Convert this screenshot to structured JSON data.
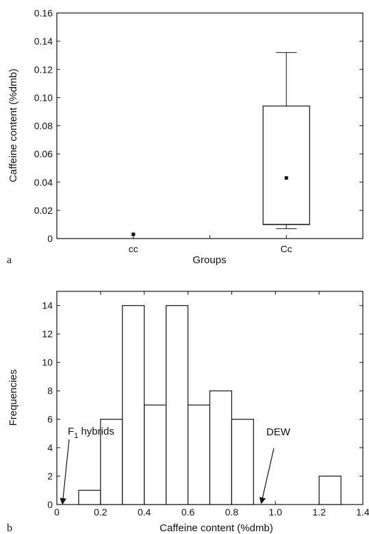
{
  "chart_data": [
    {
      "panel_label": "a",
      "type": "boxplot",
      "xlabel": "Groups",
      "ylabel": "Caffeine content (%dmb)",
      "ylim": [
        0,
        0.16
      ],
      "yticks": [
        "0",
        "0.02",
        "0.04",
        "0.06",
        "0.08",
        "0.10",
        "0.12",
        "0.14",
        "0.16"
      ],
      "categories": [
        "cc",
        "Cc"
      ],
      "boxes": [
        {
          "name": "cc",
          "min": 0.003,
          "q1": 0.003,
          "median": 0.003,
          "q3": 0.003,
          "max": 0.003,
          "mean": 0.003
        },
        {
          "name": "Cc",
          "min": 0.007,
          "q1": 0.01,
          "median": 0.01,
          "q3": 0.094,
          "max": 0.132,
          "mean": 0.043
        }
      ]
    },
    {
      "panel_label": "b",
      "type": "bar",
      "subtype": "histogram",
      "xlabel": "Caffeine content (%dmb)",
      "ylabel": "Frequencies",
      "xlim": [
        0,
        1.4
      ],
      "ylim": [
        0,
        15
      ],
      "xticks": [
        "0",
        "0.2",
        "0.4",
        "0.6",
        "0.8",
        "1.0",
        "1.2",
        "1.4"
      ],
      "yticks": [
        "0",
        "2",
        "4",
        "6",
        "8",
        "10",
        "12",
        "14"
      ],
      "bins": [
        {
          "from": 0.1,
          "to": 0.2,
          "count": 1
        },
        {
          "from": 0.2,
          "to": 0.3,
          "count": 6
        },
        {
          "from": 0.3,
          "to": 0.4,
          "count": 14
        },
        {
          "from": 0.4,
          "to": 0.5,
          "count": 7
        },
        {
          "from": 0.5,
          "to": 0.6,
          "count": 14
        },
        {
          "from": 0.6,
          "to": 0.7,
          "count": 7
        },
        {
          "from": 0.7,
          "to": 0.8,
          "count": 8
        },
        {
          "from": 0.8,
          "to": 0.9,
          "count": 6
        },
        {
          "from": 1.2,
          "to": 1.3,
          "count": 2
        }
      ],
      "annotations": [
        {
          "base": "F",
          "sub": "1",
          "rest": " hybrids",
          "x": 0.02
        },
        {
          "text": "DEW",
          "x": 0.93
        }
      ]
    }
  ]
}
